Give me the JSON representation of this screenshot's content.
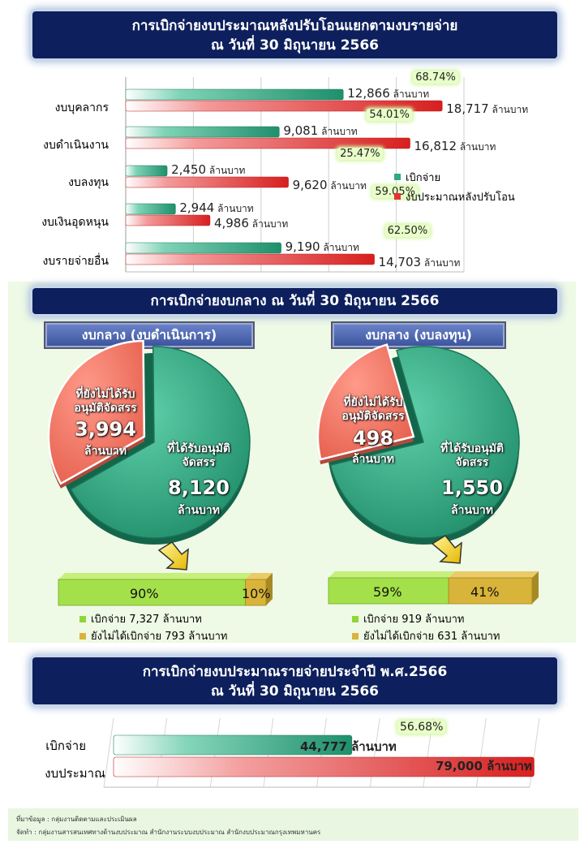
{
  "section1": {
    "title_line1": "การเบิกจ่ายงบประมาณหลังปรับโอนแยกตามงบรายจ่าย",
    "title_line2": "ณ วันที่ 30 มิถุนายน 2566",
    "unit": "ล้านบาท",
    "legend": [
      "เบิกจ่าย",
      "งบประมาณหลังปรับโอน"
    ]
  },
  "section2": {
    "title": "การเบิกจ่ายงบกลาง  ณ วันที่ 30 มิถุนายน 2566",
    "left": {
      "heading": "งบกลาง (งบดำเนินการ)",
      "pending_label_1": "ที่ยังไม่ได้รับ",
      "pending_label_2": "อนุมัติจัดสรร",
      "pending_value": "3,994",
      "pending_unit": "ล้านบาท",
      "approved_label_1": "ที่ได้รับอนุมัติ",
      "approved_label_2": "จัดสรร",
      "approved_value": "8,120",
      "approved_unit": "ล้านบาท",
      "bar_paid_pct": "90%",
      "bar_unpaid_pct": "10%",
      "legend_paid": "เบิกจ่าย 7,327 ล้านบาท",
      "legend_unpaid": "ยังไม่ได้เบิกจ่าย 793 ล้านบาท"
    },
    "right": {
      "heading": "งบกลาง (งบลงทุน)",
      "pending_label_1": "ที่ยังไม่ได้รับ",
      "pending_label_2": "อนุมัติจัดสรร",
      "pending_value": "498",
      "pending_unit": "ล้านบาท",
      "approved_label_1": "ที่ได้รับอนุมัติ",
      "approved_label_2": "จัดสรร",
      "approved_value": "1,550",
      "approved_unit": "ล้านบาท",
      "bar_paid_pct": "59%",
      "bar_unpaid_pct": "41%",
      "legend_paid": "เบิกจ่าย 919 ล้านบาท",
      "legend_unpaid": "ยังไม่ได้เบิกจ่าย 631 ล้านบาท"
    }
  },
  "section3": {
    "title_line1": "การเบิกจ่ายงบประมาณรายจ่ายประจำปี  พ.ศ.2566",
    "title_line2": "ณ วันที่ 30 มิถุนายน 2566",
    "pct_label": "56.68%",
    "paid_label": "44,777 ล้านบาท",
    "budget_label": "79,000 ล้านบาท"
  },
  "footer": {
    "source": "ที่มาข้อมูล  :  กลุ่มงานติดตามและประเมินผล",
    "producer": "จัดทำ  :  กลุ่มงานสารสนเทศทางด้านงบประมาณ  สำนักงานระบบงบประมาณ  สำนักงบประมาณกรุงเทพมหานคร"
  },
  "colors": {
    "paid": "#2eaa85",
    "budget": "#e23434",
    "navy": "#0d1f5c",
    "pending": "#f47d6c",
    "bar_green": "#a4e04a",
    "bar_gold": "#d9b43a"
  },
  "chart_data": [
    {
      "type": "bar",
      "orientation": "horizontal",
      "categories": [
        "งบบุคลากร",
        "งบดำเนินงาน",
        "งบลงทุน",
        "งบเงินอุดหนุน",
        "งบรายจ่ายอื่น"
      ],
      "series": [
        {
          "name": "เบิกจ่าย",
          "values": [
            12866,
            9081,
            2450,
            2944,
            9190
          ],
          "labels": [
            "12,866",
            "9,081",
            "2,450",
            "2,944",
            "9,190"
          ]
        },
        {
          "name": "งบประมาณหลังปรับโอน",
          "values": [
            18717,
            16812,
            9620,
            4986,
            14703
          ],
          "labels": [
            "18,717",
            "16,812",
            "9,620",
            "4,986",
            "14,703"
          ]
        }
      ],
      "percent_labels": [
        "68.74%",
        "54.01%",
        "25.47%",
        "59.05%",
        "62.50%"
      ],
      "xlim": [
        0,
        20000
      ],
      "grid": true,
      "legend_position": "right"
    },
    {
      "type": "pie",
      "categories": [
        "ที่ได้รับอนุมัติจัดสรร",
        "ที่ยังไม่ได้รับอนุมัติจัดสรร"
      ],
      "values": [
        8120,
        3994
      ]
    },
    {
      "type": "pie",
      "categories": [
        "ที่ได้รับอนุมัติจัดสรร",
        "ที่ยังไม่ได้รับอนุมัติจัดสรร"
      ],
      "values": [
        1550,
        498
      ]
    },
    {
      "type": "bar",
      "orientation": "stacked-horizontal",
      "categories": [
        "เบิกจ่าย",
        "ยังไม่ได้เบิกจ่าย"
      ],
      "values": [
        90,
        10
      ]
    },
    {
      "type": "bar",
      "orientation": "stacked-horizontal",
      "categories": [
        "เบิกจ่าย",
        "ยังไม่ได้เบิกจ่าย"
      ],
      "values": [
        59,
        41
      ]
    },
    {
      "type": "bar",
      "orientation": "horizontal",
      "categories": [
        "เบิกจ่าย",
        "งบประมาณ"
      ],
      "values": [
        44777,
        79000
      ],
      "xlim": [
        0,
        80000
      ],
      "grid": true
    }
  ]
}
